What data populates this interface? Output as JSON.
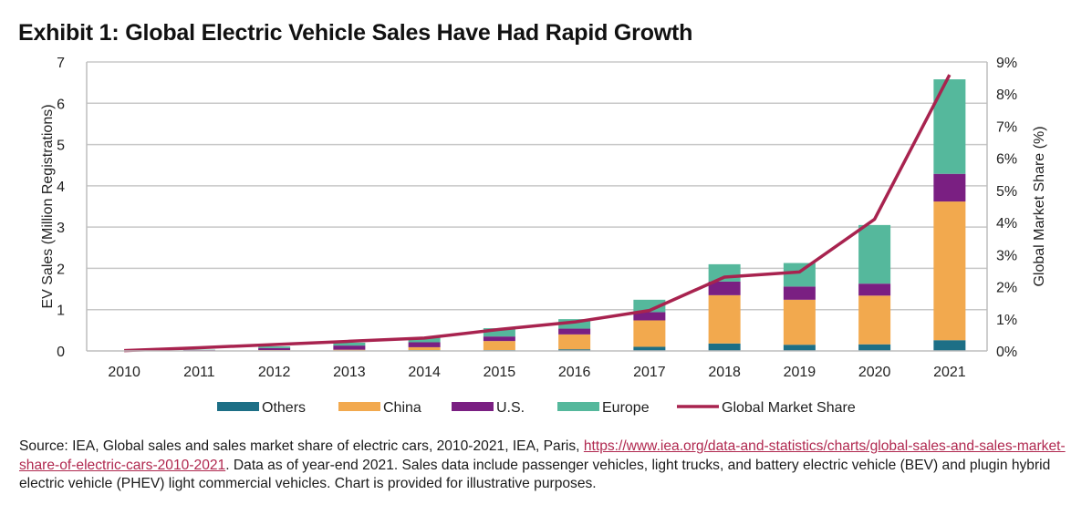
{
  "title": "Exhibit 1: Global Electric Vehicle Sales Have Had Rapid Growth",
  "source": {
    "prefix": "Source: IEA, Global sales and sales market share of electric cars, 2010-2021, IEA, Paris, ",
    "link_text": "https://www.iea.org/data-and-statistics/charts/global-sales-and-sales-market-share-of-electric-cars-2010-2021",
    "suffix": ".  Data as of year-end 2021.  Sales data include passenger vehicles, light trucks, and battery electric vehicle (BEV) and plugin hybrid electric vehicle (PHEV) light commercial vehicles.  Chart is provided for illustrative purposes."
  },
  "colors": {
    "Others": "#1d6f86",
    "China": "#f2a94e",
    "U.S.": "#7a1f82",
    "Europe": "#55b89c",
    "Global Market Share": "#a8234f",
    "grid": "#c8c8c8"
  },
  "chart_data": {
    "type": "bar",
    "stacked": true,
    "title": "Exhibit 1: Global Electric Vehicle Sales Have Had Rapid Growth",
    "xlabel": "",
    "ylabel": "EV Sales (Million Registrations)",
    "y2label": "Global Market Share (%)",
    "ylim": [
      0,
      7
    ],
    "y2lim": [
      0,
      9
    ],
    "yticks": [
      "0",
      "1",
      "2",
      "3",
      "4",
      "5",
      "6",
      "7"
    ],
    "y2ticks": [
      "0%",
      "1%",
      "2%",
      "3%",
      "4%",
      "5%",
      "6%",
      "7%",
      "8%",
      "9%"
    ],
    "grid": true,
    "legend_position": "bottom",
    "categories": [
      "2010",
      "2011",
      "2012",
      "2013",
      "2014",
      "2015",
      "2016",
      "2017",
      "2018",
      "2019",
      "2020",
      "2021"
    ],
    "series": [
      {
        "name": "Others",
        "type": "bar",
        "axis": "left",
        "values": [
          0.0,
          0.0,
          0.01,
          0.01,
          0.02,
          0.02,
          0.04,
          0.1,
          0.18,
          0.15,
          0.16,
          0.26
        ]
      },
      {
        "name": "China",
        "type": "bar",
        "axis": "left",
        "values": [
          0.0,
          0.01,
          0.01,
          0.02,
          0.07,
          0.22,
          0.36,
          0.64,
          1.17,
          1.09,
          1.18,
          3.36
        ]
      },
      {
        "name": "U.S.",
        "type": "bar",
        "axis": "left",
        "values": [
          0.0,
          0.01,
          0.05,
          0.1,
          0.12,
          0.11,
          0.14,
          0.2,
          0.33,
          0.32,
          0.29,
          0.67
        ]
      },
      {
        "name": "Europe",
        "type": "bar",
        "axis": "left",
        "values": [
          0.0,
          0.01,
          0.04,
          0.07,
          0.11,
          0.2,
          0.23,
          0.3,
          0.42,
          0.57,
          1.42,
          2.29
        ]
      },
      {
        "name": "Global Market Share",
        "type": "line",
        "axis": "right",
        "values": [
          0.01,
          0.1,
          0.2,
          0.3,
          0.4,
          0.67,
          0.9,
          1.26,
          2.3,
          2.46,
          4.1,
          8.6
        ]
      }
    ]
  }
}
